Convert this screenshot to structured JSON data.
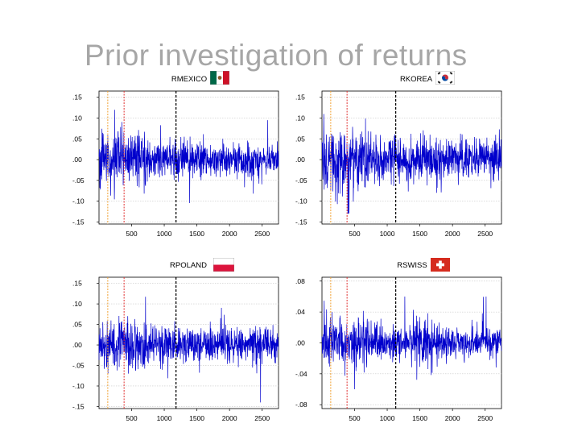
{
  "slide": {
    "title": "Prior investigation of returns"
  },
  "colors": {
    "series": "#0000cc",
    "orange_line": "#f0a030",
    "red_line": "#e03030",
    "black_line": "#000000",
    "grid": "#c8c8c8"
  },
  "chart_data": [
    {
      "type": "line",
      "title": "RMEXICO",
      "flag": "mexico-flag-icon",
      "x_range": [
        1,
        2750
      ],
      "x_ticks": [
        500,
        1000,
        1500,
        2000,
        2500
      ],
      "x_tick_labels": [
        "500",
        "1000",
        "1500",
        "2000",
        "2500"
      ],
      "ylim": [
        -0.155,
        0.165
      ],
      "y_ticks": [
        0.15,
        0.1,
        0.05,
        0.0,
        -0.05,
        -0.1,
        -0.15
      ],
      "y_tick_labels": [
        ".15",
        ".10",
        ".05",
        ".00",
        "-.05",
        "-.10",
        "-.15"
      ],
      "vertical_lines": {
        "orange": 135,
        "red": 385,
        "black": 1180
      },
      "series_summary": {
        "mean": 0.0,
        "typical_range": [
          -0.04,
          0.04
        ],
        "min": -0.14,
        "max": 0.12
      }
    },
    {
      "type": "line",
      "title": "RKOREA",
      "flag": "korea-flag-icon",
      "x_range": [
        1,
        2750
      ],
      "x_ticks": [
        500,
        1000,
        1500,
        2000,
        2500
      ],
      "x_tick_labels": [
        "500",
        "1000",
        "1500",
        "2000",
        "2500"
      ],
      "ylim": [
        -0.155,
        0.165
      ],
      "y_ticks": [
        0.15,
        0.1,
        0.05,
        0.0,
        -0.05,
        -0.1,
        -0.15
      ],
      "y_tick_labels": [
        ".15",
        ".10",
        ".05",
        ".00",
        "-.05",
        "-.10",
        "-.15"
      ],
      "vertical_lines": {
        "orange": 135,
        "red": 385,
        "black": 1130
      },
      "series_summary": {
        "mean": 0.0,
        "typical_range": [
          -0.05,
          0.05
        ],
        "min": -0.13,
        "max": 0.11
      }
    },
    {
      "type": "line",
      "title": "RPOLAND",
      "flag": "poland-flag-icon",
      "x_range": [
        1,
        2750
      ],
      "x_ticks": [
        500,
        1000,
        1500,
        2000,
        2500
      ],
      "x_tick_labels": [
        "500",
        "1000",
        "1500",
        "2000",
        "2500"
      ],
      "ylim": [
        -0.155,
        0.165
      ],
      "y_ticks": [
        0.15,
        0.1,
        0.05,
        0.0,
        -0.05,
        -0.1,
        -0.15
      ],
      "y_tick_labels": [
        ".15",
        ".10",
        ".05",
        ".00",
        "-.05",
        "-.10",
        "-.15"
      ],
      "vertical_lines": {
        "orange": 135,
        "red": 385,
        "black": 1180
      },
      "series_summary": {
        "mean": 0.0,
        "typical_range": [
          -0.04,
          0.04
        ],
        "min": -0.14,
        "max": 0.14
      }
    },
    {
      "type": "line",
      "title": "RSWISS",
      "flag": "switzerland-flag-icon",
      "x_range": [
        1,
        2750
      ],
      "x_ticks": [
        500,
        1000,
        1500,
        2000,
        2500
      ],
      "x_tick_labels": [
        "500",
        "1000",
        "1500",
        "2000",
        "2500"
      ],
      "ylim": [
        -0.085,
        0.085
      ],
      "y_ticks": [
        0.08,
        0.04,
        0.0,
        -0.04,
        -0.08
      ],
      "y_tick_labels": [
        ".08",
        ".04",
        ".00",
        "-.04",
        "-.08"
      ],
      "vertical_lines": {
        "orange": 135,
        "red": 385,
        "black": 1130
      },
      "series_summary": {
        "mean": 0.0,
        "typical_range": [
          -0.02,
          0.02
        ],
        "min": -0.06,
        "max": 0.06
      }
    }
  ]
}
